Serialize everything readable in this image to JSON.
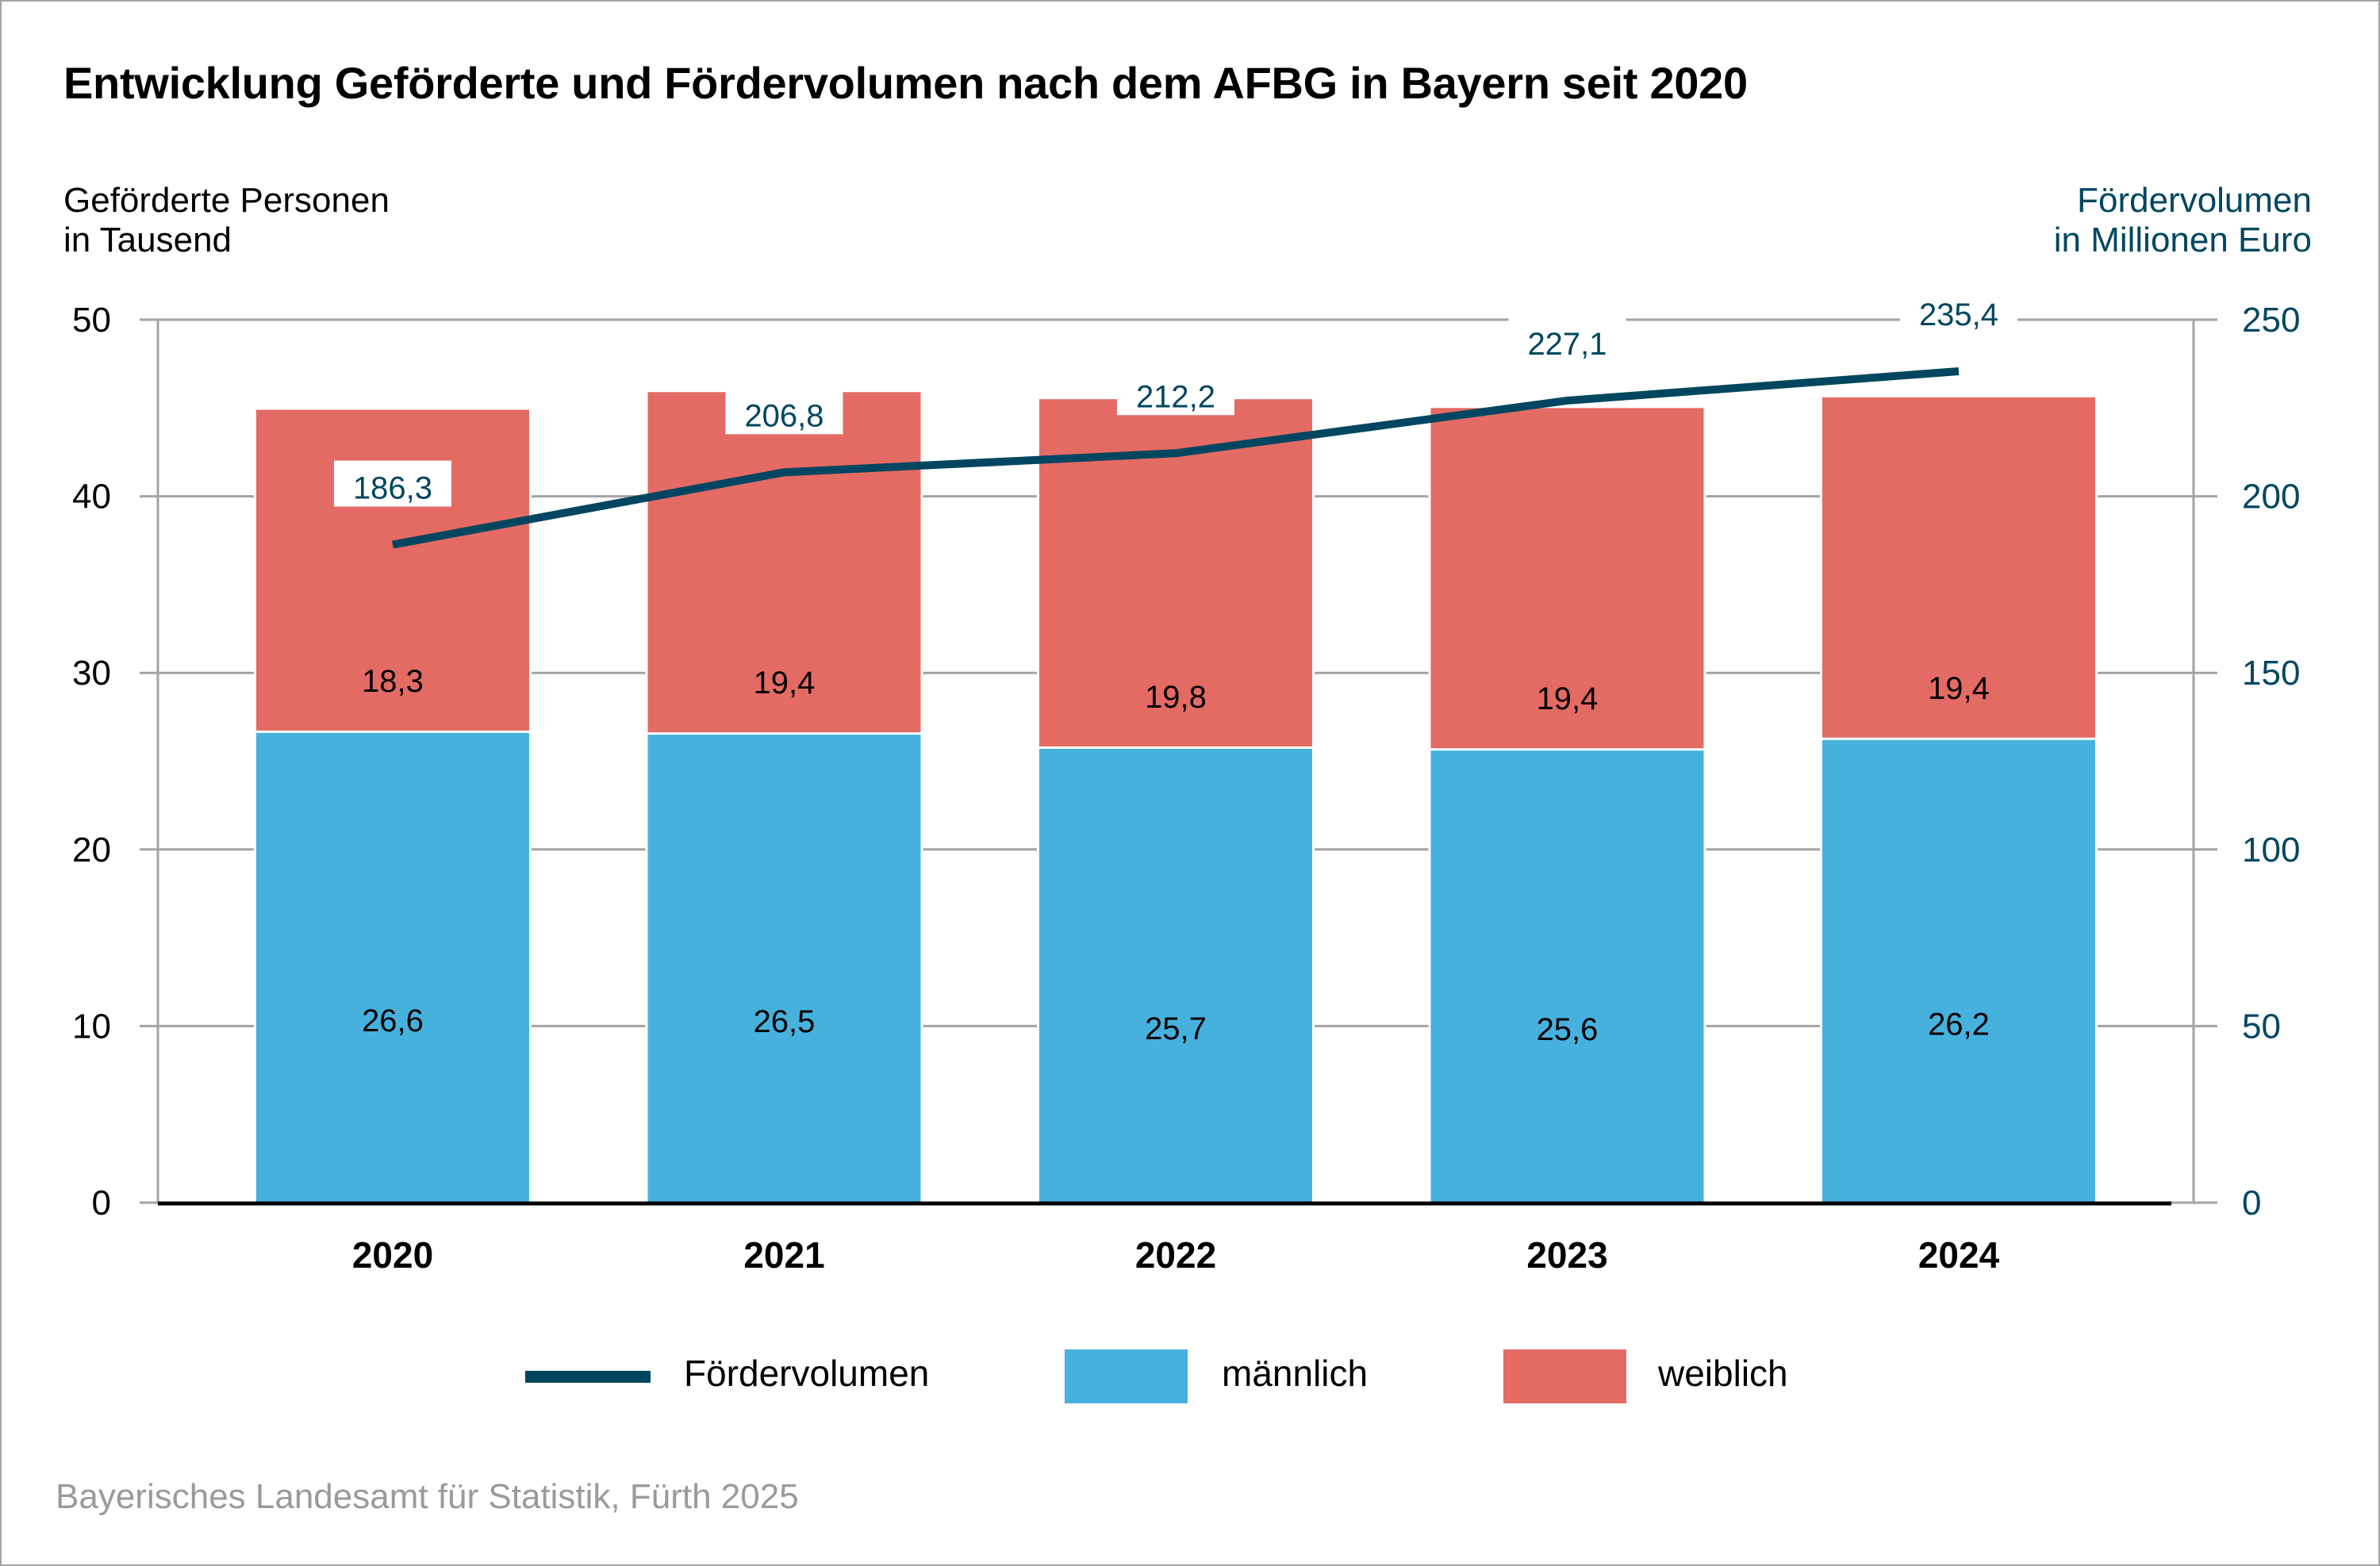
{
  "colors": {
    "male": "#47B1DE",
    "female": "#E46A64",
    "line": "#004660",
    "grid": "#a3a3a3",
    "source_text": "#9a9a9a"
  },
  "chart_data": {
    "type": "bar",
    "subtype": "stacked bar with line on secondary axis",
    "title": "Entwicklung Geförderte und Fördervolumen nach dem AFBG in Bayern seit 2020",
    "ylabel": "Geförderte Personen\nin Tausend",
    "ylabel_right": "Fördervolumen\nin Millionen Euro",
    "xlabel": "",
    "categories": [
      "2020",
      "2021",
      "2022",
      "2023",
      "2024"
    ],
    "series": [
      {
        "name": "männlich",
        "type": "bar",
        "axis": "left",
        "values": [
          26.6,
          26.5,
          25.7,
          25.6,
          26.2
        ],
        "labels": [
          "26,6",
          "26,5",
          "25,7",
          "25,6",
          "26,2"
        ]
      },
      {
        "name": "weiblich",
        "type": "bar",
        "axis": "left",
        "values": [
          18.3,
          19.4,
          19.8,
          19.4,
          19.4
        ],
        "labels": [
          "18,3",
          "19,4",
          "19,8",
          "19,4",
          "19,4"
        ]
      },
      {
        "name": "Fördervolumen",
        "type": "line",
        "axis": "right",
        "values": [
          186.3,
          206.8,
          212.2,
          227.1,
          235.4
        ],
        "labels": [
          "186,3",
          "206,8",
          "212,2",
          "227,1",
          "235,4"
        ]
      }
    ],
    "ylim": [
      0,
      50
    ],
    "ylim_right": [
      0,
      250
    ],
    "yticks": [
      "0",
      "10",
      "20",
      "30",
      "40",
      "50"
    ],
    "yticks_right": [
      "0",
      "50",
      "100",
      "150",
      "200",
      "250"
    ],
    "grid": true,
    "legend": {
      "placement": "bottom-center",
      "entries": [
        "Fördervolumen",
        "männlich",
        "weiblich"
      ]
    }
  },
  "source": "Bayerisches Landesamt für Statistik, Fürth 2025"
}
